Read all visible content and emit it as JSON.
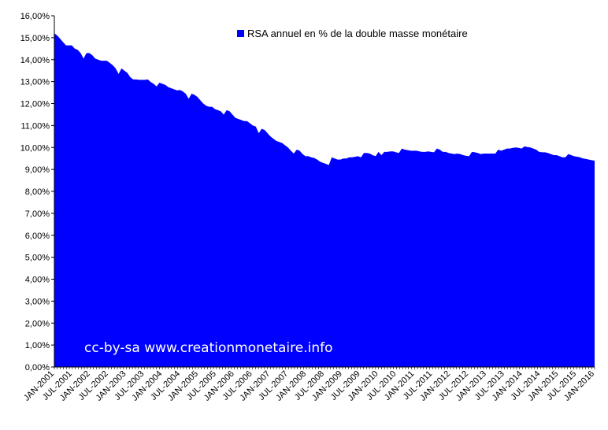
{
  "chart_data": {
    "type": "area",
    "title": "",
    "xlabel": "",
    "ylabel": "",
    "ylim": [
      0,
      16
    ],
    "yticks": [
      "0,00%",
      "1,00%",
      "2,00%",
      "3,00%",
      "4,00%",
      "5,00%",
      "6,00%",
      "7,00%",
      "8,00%",
      "9,00%",
      "10,00%",
      "11,00%",
      "12,00%",
      "13,00%",
      "14,00%",
      "15,00%",
      "16,00%"
    ],
    "xtick_labels": [
      "JAN-2001",
      "JUL-2001",
      "JAN-2002",
      "JUL-2002",
      "JAN-2003",
      "JUL-2003",
      "JAN-2004",
      "JUL-2004",
      "JAN-2005",
      "JUL-2005",
      "JAN-2006",
      "JUL-2006",
      "JAN-2007",
      "JUL-2007",
      "JAN-2008",
      "JUL-2008",
      "JAN-2009",
      "JUL-2009",
      "JAN-2010",
      "JUL-2010",
      "JAN-2011",
      "JUL-2011",
      "JAN-2012",
      "JUL-2012",
      "JAN-2013",
      "JUL-2013",
      "JAN-2014",
      "JUL-2014",
      "JAN-2015",
      "JUL-2015",
      "JAN-2016"
    ],
    "x_start": "JAN-2001",
    "x_end": "JAN-2016",
    "grid": false,
    "legend_position": "top-center",
    "color": "#0000ff",
    "series": [
      {
        "name": "RSA annuel en % de la double masse monétaire",
        "values": [
          15.2,
          15.1,
          14.95,
          14.8,
          14.65,
          14.65,
          14.65,
          14.5,
          14.45,
          14.3,
          14.05,
          14.3,
          14.3,
          14.2,
          14.05,
          14.0,
          13.95,
          13.95,
          13.95,
          13.85,
          13.75,
          13.6,
          13.35,
          13.6,
          13.5,
          13.4,
          13.2,
          13.1,
          13.1,
          13.08,
          13.08,
          13.08,
          13.1,
          12.98,
          12.9,
          12.78,
          12.95,
          12.9,
          12.85,
          12.75,
          12.7,
          12.65,
          12.6,
          12.62,
          12.55,
          12.45,
          12.22,
          12.45,
          12.4,
          12.3,
          12.15,
          12.0,
          11.9,
          11.85,
          11.85,
          11.75,
          11.7,
          11.65,
          11.5,
          11.7,
          11.65,
          11.5,
          11.35,
          11.3,
          11.25,
          11.2,
          11.2,
          11.1,
          11.0,
          10.95,
          10.65,
          10.85,
          10.8,
          10.65,
          10.5,
          10.4,
          10.3,
          10.25,
          10.2,
          10.1,
          10.0,
          9.85,
          9.72,
          9.9,
          9.85,
          9.7,
          9.6,
          9.6,
          9.55,
          9.52,
          9.45,
          9.35,
          9.3,
          9.25,
          9.2,
          9.55,
          9.5,
          9.45,
          9.45,
          9.5,
          9.5,
          9.55,
          9.55,
          9.58,
          9.6,
          9.55,
          9.75,
          9.75,
          9.72,
          9.65,
          9.6,
          9.8,
          9.65,
          9.8,
          9.8,
          9.82,
          9.82,
          9.78,
          9.75,
          9.95,
          9.9,
          9.88,
          9.85,
          9.85,
          9.85,
          9.82,
          9.8,
          9.8,
          9.82,
          9.8,
          9.78,
          9.95,
          9.9,
          9.8,
          9.8,
          9.75,
          9.72,
          9.7,
          9.72,
          9.7,
          9.65,
          9.62,
          9.6,
          9.8,
          9.78,
          9.75,
          9.7,
          9.72,
          9.72,
          9.72,
          9.72,
          9.72,
          9.9,
          9.85,
          9.9,
          9.95,
          9.95,
          9.98,
          10.0,
          9.98,
          9.95,
          10.05,
          10.02,
          10.0,
          9.95,
          9.9,
          9.8,
          9.78,
          9.78,
          9.75,
          9.7,
          9.65,
          9.65,
          9.6,
          9.55,
          9.55,
          9.7,
          9.65,
          9.6,
          9.58,
          9.55,
          9.5,
          9.48,
          9.45,
          9.42,
          9.4
        ]
      }
    ],
    "annotations": [
      "cc-by-sa www.creationmonetaire.info"
    ]
  }
}
